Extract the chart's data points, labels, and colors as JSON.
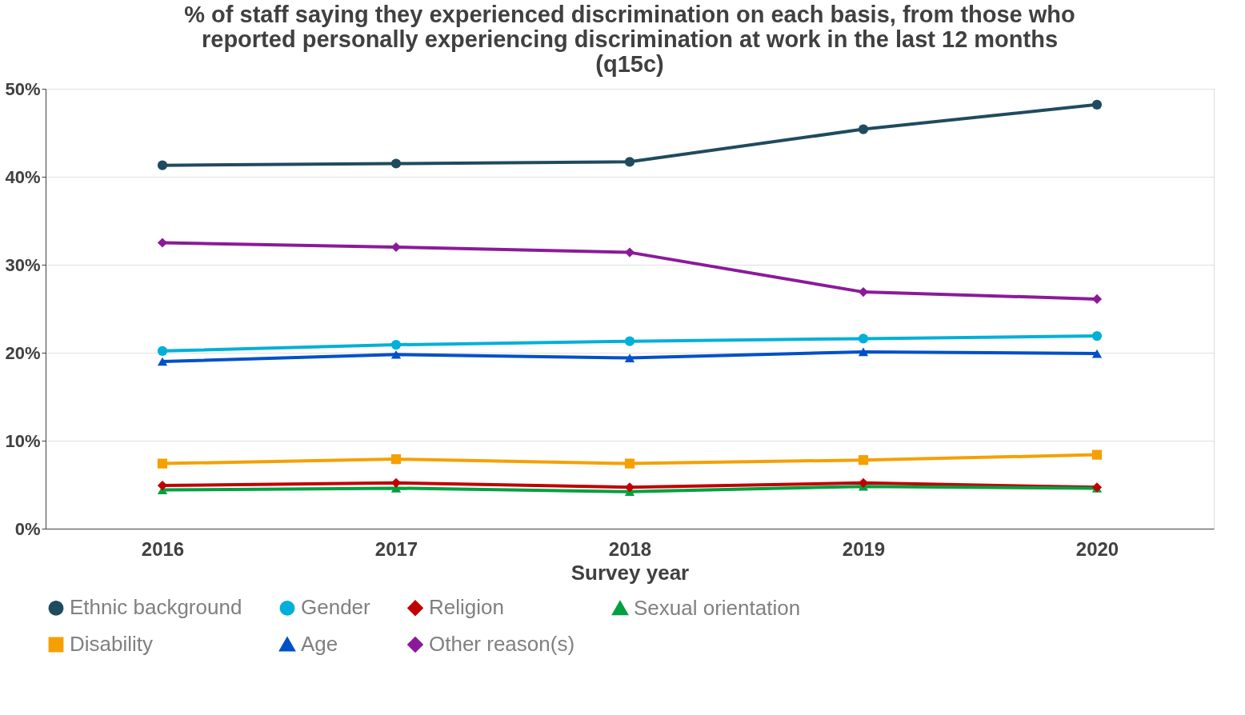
{
  "chart_data": {
    "type": "line",
    "title": "% of staff saying they experienced discrimination on each basis, from those who reported personally experiencing discrimination at work in the last 12 months (q15c)",
    "xlabel": "Survey year",
    "categories": [
      "2016",
      "2017",
      "2018",
      "2019",
      "2020"
    ],
    "series": [
      {
        "name": "Ethnic background",
        "color": "#1f4b5e",
        "marker": "circle",
        "values": [
          41.3,
          41.5,
          41.7,
          45.4,
          48.2
        ]
      },
      {
        "name": "Gender",
        "color": "#00b0d8",
        "marker": "circle",
        "values": [
          20.2,
          20.9,
          21.3,
          21.6,
          21.9
        ]
      },
      {
        "name": "Religion",
        "color": "#c00000",
        "marker": "diamond",
        "values": [
          4.9,
          5.2,
          4.7,
          5.2,
          4.7
        ]
      },
      {
        "name": "Sexual orientation",
        "color": "#00a040",
        "marker": "triangle",
        "values": [
          4.4,
          4.6,
          4.2,
          4.8,
          4.6
        ]
      },
      {
        "name": "Disability",
        "color": "#f5a000",
        "marker": "square",
        "values": [
          7.4,
          7.9,
          7.4,
          7.8,
          8.4
        ]
      },
      {
        "name": "Age",
        "color": "#0050c8",
        "marker": "triangle",
        "values": [
          19.0,
          19.8,
          19.4,
          20.1,
          19.9
        ]
      },
      {
        "name": "Other reason(s)",
        "color": "#8b1a9a",
        "marker": "diamond",
        "values": [
          32.5,
          32.0,
          31.4,
          26.9,
          26.1
        ]
      }
    ],
    "ylim": [
      0,
      50
    ],
    "yticks": [
      {
        "value": 0,
        "label": "0%"
      },
      {
        "value": 10,
        "label": "10%"
      },
      {
        "value": 20,
        "label": "20%"
      },
      {
        "value": 30,
        "label": "30%"
      },
      {
        "value": 40,
        "label": "40%"
      },
      {
        "value": 50,
        "label": "50%"
      }
    ],
    "grid": "y",
    "legend": "bottom",
    "line_style": "solid"
  }
}
